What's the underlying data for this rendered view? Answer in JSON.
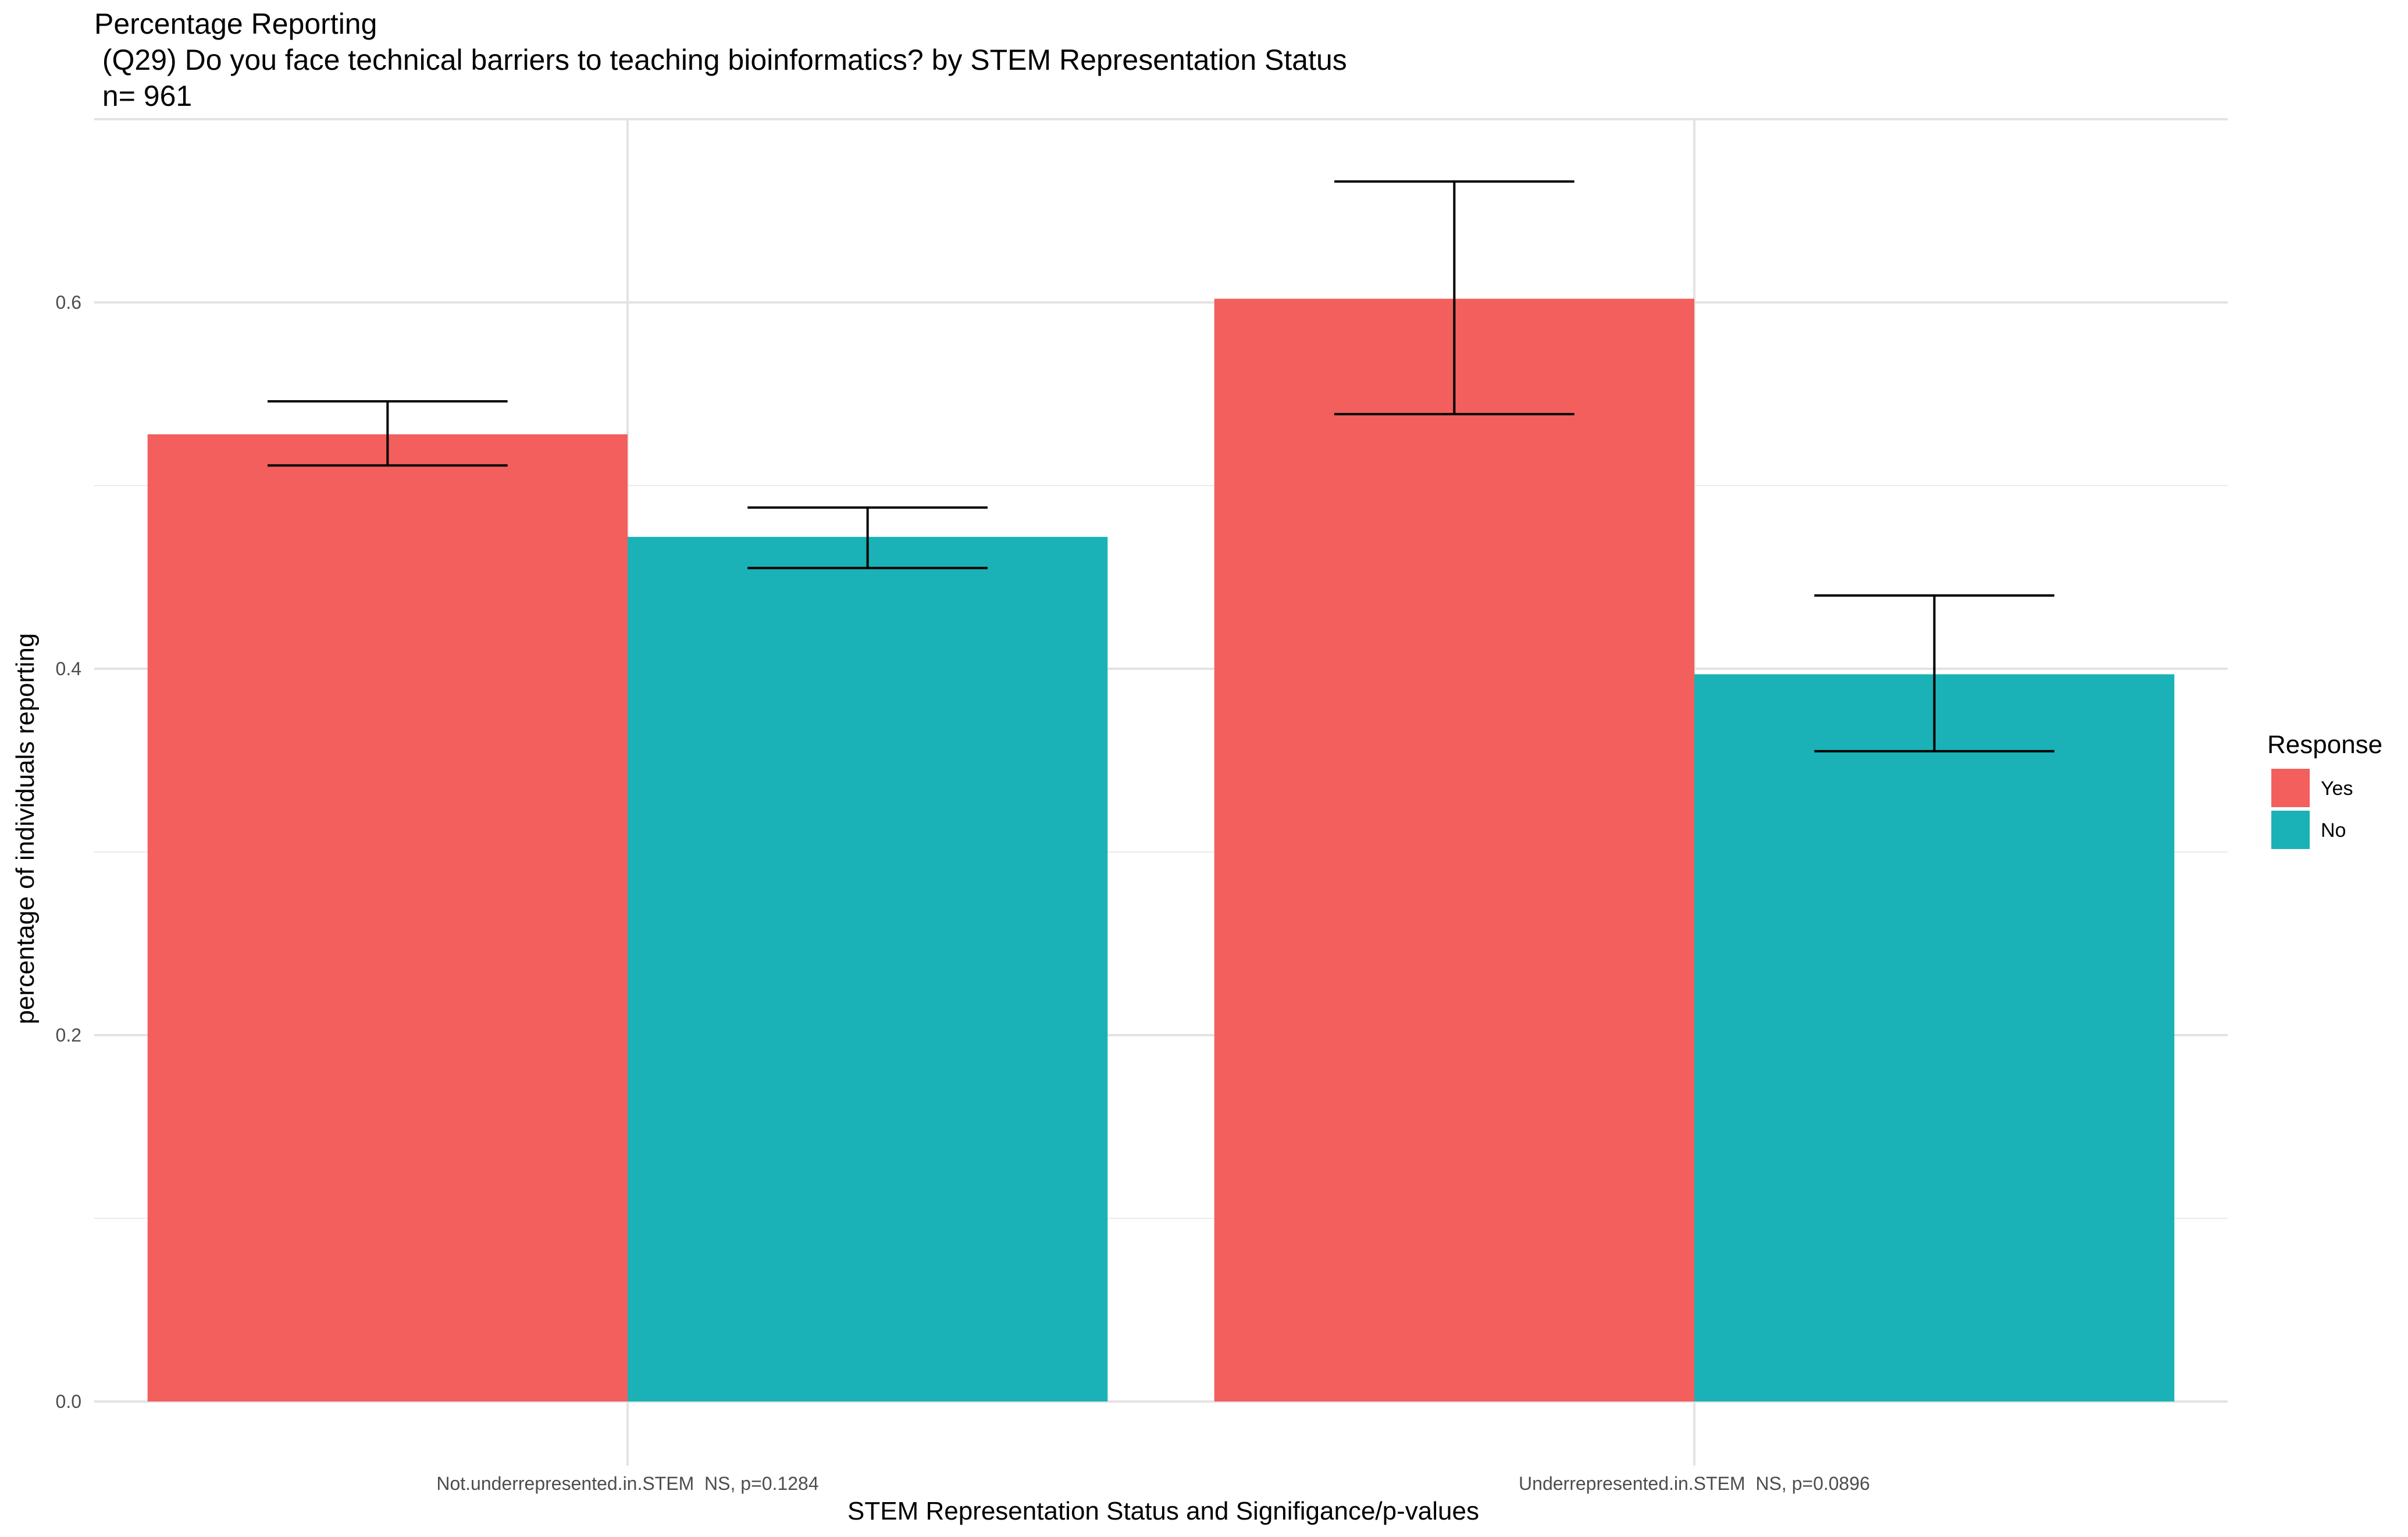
{
  "chart_data": {
    "type": "bar",
    "title_lines": [
      "Percentage Reporting",
      " (Q29) Do you face technical barriers to teaching bioinformatics? by STEM Representation Status",
      " n= 961"
    ],
    "xlabel": "STEM Representation Status and Signifigance/p-values",
    "ylabel": "percentage of individuals reporting",
    "categories": [
      "Not.underrepresented.in.STEM  NS, p=0.1284",
      "Underrepresented.in.STEM  NS, p=0.0896"
    ],
    "series": [
      {
        "name": "Yes",
        "color": "#F25F5C",
        "values": [
          0.528,
          0.602
        ],
        "error_low": [
          0.511,
          0.539
        ],
        "error_high": [
          0.546,
          0.666
        ]
      },
      {
        "name": "No",
        "color": "#1AB2B6",
        "values": [
          0.472,
          0.397
        ],
        "error_low": [
          0.455,
          0.355
        ],
        "error_high": [
          0.488,
          0.44
        ]
      }
    ],
    "ylim": [
      0,
      0.7
    ],
    "yticks": [
      0.0,
      0.2,
      0.4,
      0.6
    ],
    "ytick_labels": [
      "0.0",
      "0.2",
      "0.4",
      "0.6"
    ],
    "grid": true,
    "legend": {
      "title": "Response",
      "position": "right",
      "entries": [
        "Yes",
        "No"
      ]
    }
  }
}
